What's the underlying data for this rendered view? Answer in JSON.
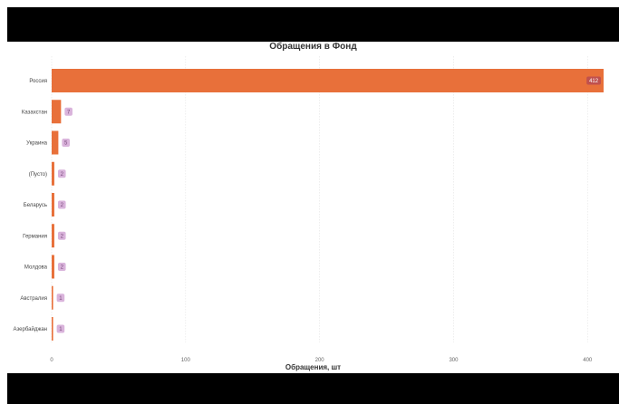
{
  "chart_data": {
    "type": "bar",
    "orientation": "horizontal",
    "title": "Обращения в Фонд",
    "xlabel": "Обращения, шт",
    "ylabel": "",
    "categories": [
      "Россия",
      "Казахстан",
      "Украина",
      "(Пусто)",
      "Беларусь",
      "Германия",
      "Молдова",
      "Австралия",
      "Азербайджан"
    ],
    "values": [
      412,
      7,
      5,
      2,
      2,
      2,
      2,
      1,
      1
    ],
    "data_labels": [
      "412",
      "7",
      "5",
      "2",
      "2",
      "2",
      "2",
      "1",
      "1"
    ],
    "xlim": [
      0,
      412
    ],
    "xticks": [
      0,
      100,
      200,
      300,
      400
    ],
    "grid": true,
    "legend": "none",
    "colors": {
      "bar": "#E8703A",
      "label_bg_inside": "#C0504D",
      "label_text_inside": "#ffffff",
      "label_bg_outside": "#D9B3DB",
      "label_text_outside": "#7A4A7C",
      "frame": "#000000"
    }
  }
}
